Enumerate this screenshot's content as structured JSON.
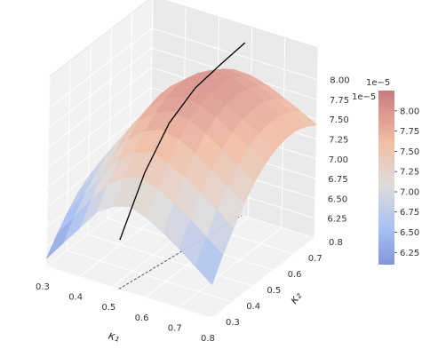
{
  "chart_data": {
    "type": "surface3d",
    "xlabel": "κ₁",
    "ylabel": "κ₂",
    "xlim": [
      0.3,
      0.8
    ],
    "ylim": [
      0.3,
      0.8
    ],
    "zlim": [
      6e-05,
      8.4e-05
    ],
    "x_ticks": [
      "0.3",
      "0.4",
      "0.5",
      "0.6",
      "0.7",
      "0.8"
    ],
    "y_ticks": [
      "0.3",
      "0.4",
      "0.5",
      "0.6",
      "0.7",
      "0.8"
    ],
    "z_ticks": [
      "6.25",
      "6.50",
      "6.75",
      "7.00",
      "7.25",
      "7.50",
      "7.75",
      "8.00"
    ],
    "z_offset_text": "1e−5",
    "colorbar": {
      "colormap": "coolwarm",
      "min": 6.1e-05,
      "max": 8.25e-05,
      "ticks": [
        "6.25",
        "6.50",
        "6.75",
        "7.00",
        "7.25",
        "7.50",
        "7.75",
        "8.00"
      ],
      "offset_text": "1e−5"
    },
    "surface_grid": {
      "x": [
        0.3,
        0.35,
        0.4,
        0.45,
        0.5,
        0.55,
        0.6,
        0.65,
        0.7,
        0.75,
        0.8
      ],
      "y": [
        0.3,
        0.35,
        0.4,
        0.45,
        0.5,
        0.55,
        0.6,
        0.65,
        0.7,
        0.75,
        0.8
      ],
      "z": [
        [
          6.1e-05,
          6.3e-05,
          6.48e-05,
          6.63e-05,
          6.73e-05,
          6.8e-05,
          6.83e-05,
          6.83e-05,
          6.8e-05,
          6.73e-05,
          6.65e-05
        ],
        [
          6.36e-05,
          6.58e-05,
          6.77e-05,
          6.92e-05,
          7.04e-05,
          7.11e-05,
          7.15e-05,
          7.15e-05,
          7.11e-05,
          7.05e-05,
          6.96e-05
        ],
        [
          6.62e-05,
          6.86e-05,
          7.06e-05,
          7.22e-05,
          7.34e-05,
          7.42e-05,
          7.46e-05,
          7.46e-05,
          7.42e-05,
          7.36e-05,
          7.26e-05
        ],
        [
          6.88e-05,
          7.13e-05,
          7.34e-05,
          7.51e-05,
          7.64e-05,
          7.72e-05,
          7.76e-05,
          7.76e-05,
          7.72e-05,
          7.66e-05,
          7.56e-05
        ],
        [
          7.02e-05,
          7.28e-05,
          7.5e-05,
          7.67e-05,
          7.8e-05,
          7.89e-05,
          7.93e-05,
          7.93e-05,
          7.89e-05,
          7.82e-05,
          7.72e-05
        ],
        [
          7.08e-05,
          7.34e-05,
          7.56e-05,
          7.74e-05,
          7.88e-05,
          7.97e-05,
          8.01e-05,
          8.02e-05,
          7.98e-05,
          7.91e-05,
          7.8e-05
        ],
        [
          7e-05,
          7.27e-05,
          7.5e-05,
          7.69e-05,
          7.83e-05,
          7.93e-05,
          7.98e-05,
          7.99e-05,
          7.96e-05,
          7.89e-05,
          7.79e-05
        ],
        [
          6.88e-05,
          7.15e-05,
          7.38e-05,
          7.58e-05,
          7.73e-05,
          7.84e-05,
          7.9e-05,
          7.92e-05,
          7.89e-05,
          7.83e-05,
          7.73e-05
        ],
        [
          6.74e-05,
          7.01e-05,
          7.24e-05,
          7.44e-05,
          7.6e-05,
          7.71e-05,
          7.78e-05,
          7.81e-05,
          7.79e-05,
          7.73e-05,
          7.64e-05
        ],
        [
          6.58e-05,
          6.85e-05,
          7.09e-05,
          7.29e-05,
          7.46e-05,
          7.58e-05,
          7.66e-05,
          7.69e-05,
          7.68e-05,
          7.63e-05,
          7.54e-05
        ],
        [
          6.42e-05,
          6.69e-05,
          6.93e-05,
          7.14e-05,
          7.31e-05,
          7.44e-05,
          7.52e-05,
          7.56e-05,
          7.56e-05,
          7.51e-05,
          7.43e-05
        ]
      ]
    },
    "ridge_line": {
      "color": "#000000",
      "points": [
        {
          "x": 0.52,
          "y": 0.3,
          "z": 6.62e-05
        },
        {
          "x": 0.53,
          "y": 0.4,
          "z": 7.28e-05
        },
        {
          "x": 0.54,
          "y": 0.5,
          "z": 7.72e-05
        },
        {
          "x": 0.555,
          "y": 0.6,
          "z": 7.98e-05
        },
        {
          "x": 0.57,
          "y": 0.7,
          "z": 8.1e-05
        },
        {
          "x": 0.58,
          "y": 0.8,
          "z": 8.18e-05
        }
      ]
    },
    "floor_projection": {
      "color": "#555555",
      "style": "dashed",
      "points": [
        {
          "x": 0.52,
          "y": 0.3
        },
        {
          "x": 0.58,
          "y": 0.8
        }
      ]
    },
    "grid": true,
    "legend": "none"
  }
}
